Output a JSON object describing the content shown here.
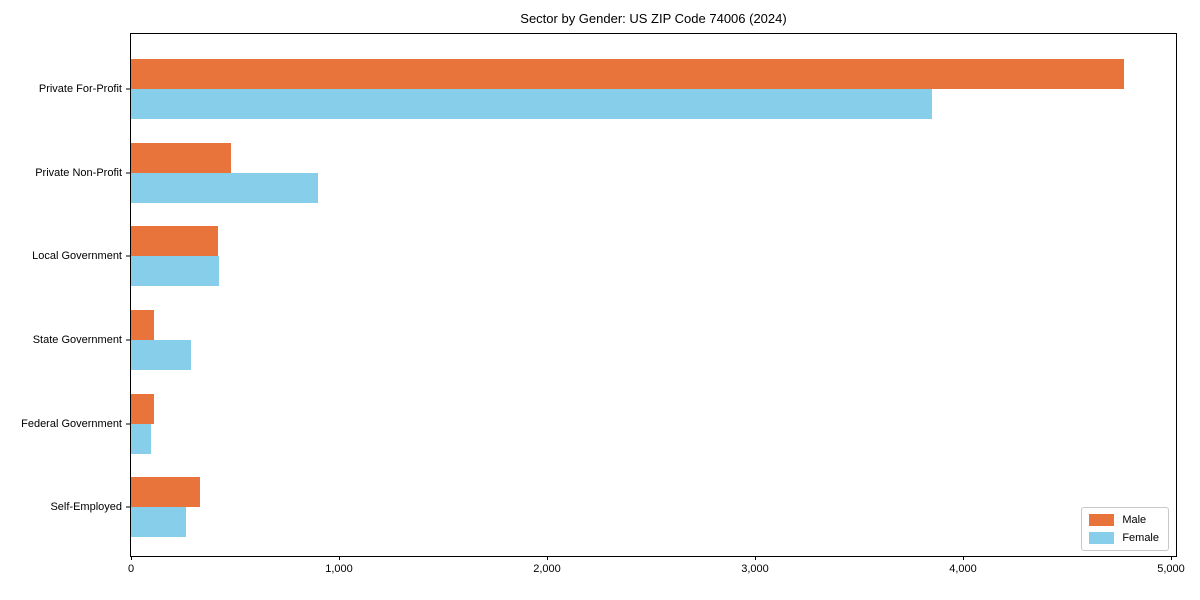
{
  "title": "Sector by Gender: US ZIP Code 74006 (2024)",
  "colors": {
    "male": "#e8743b",
    "female": "#87ceeb",
    "spine": "#000000",
    "background": "#ffffff",
    "legend_border": "#c9c9c9"
  },
  "chart_data": {
    "type": "bar",
    "orientation": "horizontal",
    "title": "Sector by Gender: US ZIP Code 74006 (2024)",
    "categories": [
      "Private For-Profit",
      "Private Non-Profit",
      "Local Government",
      "State Government",
      "Federal Government",
      "Self-Employed"
    ],
    "series": [
      {
        "name": "Male",
        "color": "#e8743b",
        "values": [
          4775,
          480,
          420,
          110,
          110,
          330
        ]
      },
      {
        "name": "Female",
        "color": "#87ceeb",
        "values": [
          3850,
          900,
          425,
          290,
          95,
          265
        ]
      }
    ],
    "xlabel": "",
    "ylabel": "",
    "xlim": [
      0,
      5000
    ],
    "xticks": [
      0,
      1000,
      2000,
      3000,
      4000,
      5000
    ],
    "xtick_labels": [
      "0",
      "1,000",
      "2,000",
      "3,000",
      "4,000",
      "5,000"
    ],
    "grid": false,
    "legend": {
      "position": "lower right",
      "entries": [
        {
          "label": "Male"
        },
        {
          "label": "Female"
        }
      ]
    }
  }
}
